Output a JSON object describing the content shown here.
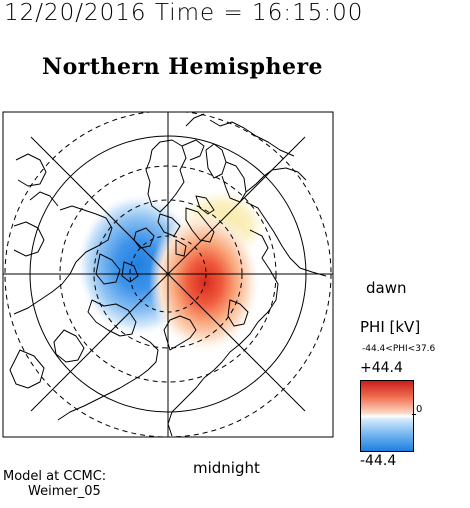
{
  "header": {
    "datetime": "12/20/2016 Time = 16:15:00",
    "title": "Northern Hemisphere"
  },
  "map": {
    "type": "polar-stereographic",
    "hemisphere": "north",
    "potential_pattern": {
      "negative_cell": "dusk-side",
      "positive_cell": "dawn-side",
      "min_value": -44.4,
      "max_value": 37.6
    }
  },
  "labels": {
    "dawn": "dawn",
    "midnight": "midnight"
  },
  "colorbar": {
    "title": "PHI [kV]",
    "range": "-44.4<PHI<37.6",
    "max_label": "+44.4",
    "min_label": "-44.4",
    "zero_label": "0",
    "colors": {
      "max": "#c81f1f",
      "zero": "#ffffff",
      "min": "#1f7fe0"
    }
  },
  "footer": {
    "model_line1": "Model at CCMC:",
    "model_line2": "Weimer_05"
  }
}
